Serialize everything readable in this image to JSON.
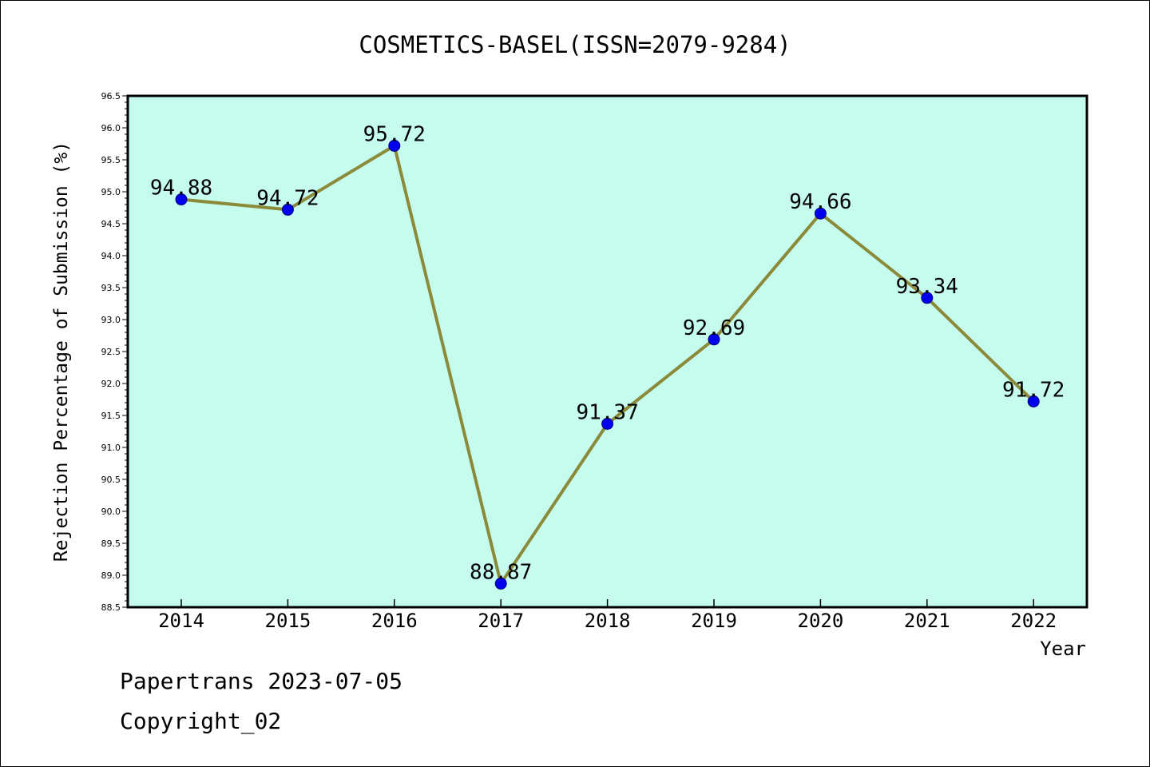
{
  "chart_data": {
    "type": "line",
    "title": "COSMETICS-BASEL(ISSN=2079-9284)",
    "xlabel": "Year",
    "ylabel": "Rejection Percentage of Submission (%)",
    "categories": [
      "2014",
      "2015",
      "2016",
      "2017",
      "2018",
      "2019",
      "2020",
      "2021",
      "2022"
    ],
    "values": [
      94.88,
      94.72,
      95.72,
      88.87,
      91.37,
      92.69,
      94.66,
      93.34,
      91.72
    ],
    "data_labels": [
      "94.88",
      "94.72",
      "95.72",
      "88.87",
      "91.37",
      "92.69",
      "94.66",
      "93.34",
      "91.72"
    ],
    "ylim": [
      88.5,
      96.5
    ],
    "yticks": [
      "88.5",
      "89.0",
      "89.5",
      "90.0",
      "90.5",
      "91.0",
      "91.5",
      "92.0",
      "92.5",
      "93.0",
      "93.5",
      "94.0",
      "94.5",
      "95.0",
      "95.5",
      "96.0",
      "96.5"
    ],
    "grid": false,
    "legend": "none",
    "colors": {
      "plot_background": "#c6fcee",
      "line": "#8b8a3a",
      "marker": "#0000ee",
      "marker_edge": "#000080"
    }
  },
  "footer": {
    "line1": "Papertrans 2023-07-05",
    "line2": "Copyright_02"
  }
}
